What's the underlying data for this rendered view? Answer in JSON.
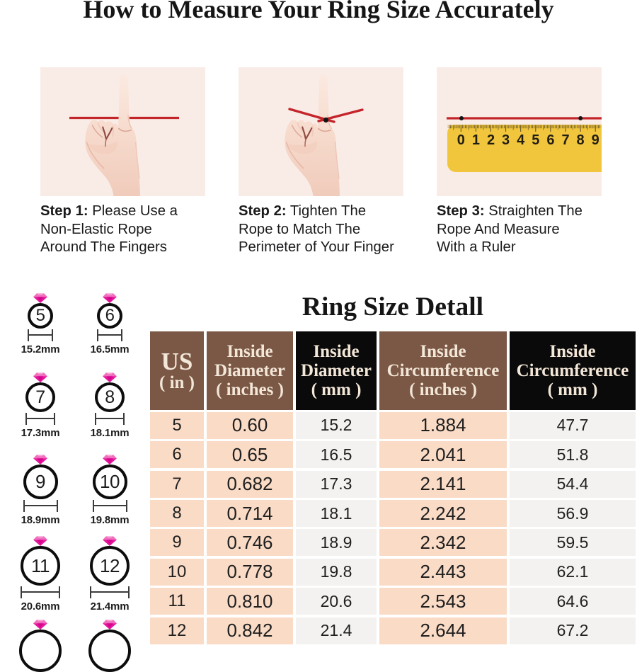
{
  "title": "How to Measure Your Ring Size Accurately",
  "steps": [
    {
      "prefix": "Step 1:",
      "line1": " Please Use a",
      "line2": "Non-Elastic Rope",
      "line3": "Around The Fingers"
    },
    {
      "prefix": "Step 2:",
      "line1": " Tighten The",
      "line2": "Rope to Match The",
      "line3": "Perimeter of Your Finger"
    },
    {
      "prefix": "Step 3:",
      "line1": " Straighten The",
      "line2": "Rope And Measure",
      "line3": "With a Ruler"
    }
  ],
  "ruler": {
    "numbers": [
      "0",
      "1",
      "2",
      "3",
      "4",
      "5",
      "6",
      "7",
      "8",
      "9"
    ]
  },
  "rings": {
    "items": [
      {
        "size": "5",
        "diameter": "15.2mm"
      },
      {
        "size": "6",
        "diameter": "16.5mm"
      },
      {
        "size": "7",
        "diameter": "17.3mm"
      },
      {
        "size": "8",
        "diameter": "18.1mm"
      },
      {
        "size": "9",
        "diameter": "18.9mm"
      },
      {
        "size": "10",
        "diameter": "19.8mm"
      },
      {
        "size": "11",
        "diameter": "20.6mm"
      },
      {
        "size": "12",
        "diameter": "21.4mm"
      },
      {
        "size": "",
        "diameter": ""
      },
      {
        "size": "",
        "diameter": ""
      }
    ]
  },
  "size_table": {
    "title": "Ring Size Detall",
    "headers": [
      {
        "line1": "US",
        "line2": "( in )"
      },
      {
        "line1": "Inside",
        "line2": "Diameter",
        "line3": "( inches )"
      },
      {
        "line1": "Inside",
        "line2": "Diameter",
        "line3": "( mm )"
      },
      {
        "line1": "Inside",
        "line2": "Circumference",
        "line3": "( inches )"
      },
      {
        "line1": "Inside",
        "line2": "Circumference",
        "line3": "( mm )"
      }
    ],
    "rows": [
      [
        "5",
        "0.60",
        "15.2",
        "1.884",
        "47.7"
      ],
      [
        "6",
        "0.65",
        "16.5",
        "2.041",
        "51.8"
      ],
      [
        "7",
        "0.682",
        "17.3",
        "2.141",
        "54.4"
      ],
      [
        "8",
        "0.714",
        "18.1",
        "2.242",
        "56.9"
      ],
      [
        "9",
        "0.746",
        "18.9",
        "2.342",
        "59.5"
      ],
      [
        "10",
        "0.778",
        "19.8",
        "2.443",
        "62.1"
      ],
      [
        "11",
        "0.810",
        "20.6",
        "2.543",
        "64.6"
      ],
      [
        "12",
        "0.842",
        "21.4",
        "2.644",
        "67.2"
      ]
    ]
  },
  "palette": {
    "page_bg": "#ffffff",
    "panel_bg": "#f9ece7",
    "rope_red": "#c4252b",
    "ruler_yellow": "#f2c63c",
    "skin": "#f6d9cc",
    "gem_pink": "#e5149b",
    "header_brown": "#7b5745",
    "header_black": "#0a0a0a",
    "header_text": "#f3e7d8",
    "cell_peach": "#fadbc6",
    "cell_offwhite": "#f3f2f0",
    "text_dark": "#1a1a1c"
  }
}
